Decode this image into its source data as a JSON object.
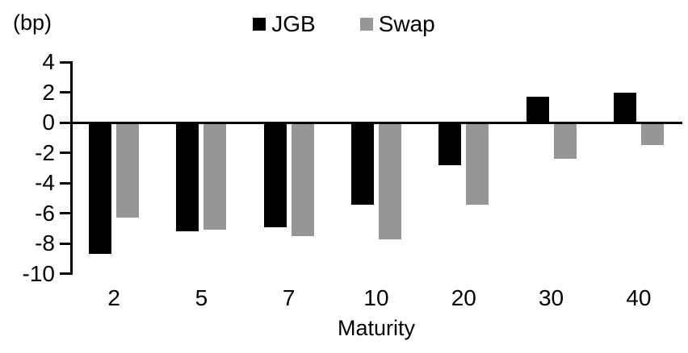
{
  "figure": {
    "unit_label": "(bp)",
    "x_axis_title": "Maturity"
  },
  "chart_data": {
    "type": "bar",
    "title": "",
    "categories": [
      "2",
      "5",
      "7",
      "10",
      "20",
      "30",
      "40"
    ],
    "series": [
      {
        "name": "JGB",
        "color": "#000000",
        "values": [
          -8.7,
          -7.2,
          -6.9,
          -5.4,
          -2.8,
          1.7,
          2.0
        ]
      },
      {
        "name": "Swap",
        "color": "#969696",
        "values": [
          -6.3,
          -7.1,
          -7.5,
          -7.7,
          -5.4,
          -2.4,
          -1.5
        ]
      }
    ],
    "xlabel": "Maturity",
    "ylabel": "(bp)",
    "yticks": [
      4,
      2,
      0,
      -2,
      -4,
      -6,
      -8,
      -10
    ],
    "ylim": [
      -10,
      4
    ],
    "grid": false,
    "legend_position": "top-center",
    "baseline": 0
  }
}
